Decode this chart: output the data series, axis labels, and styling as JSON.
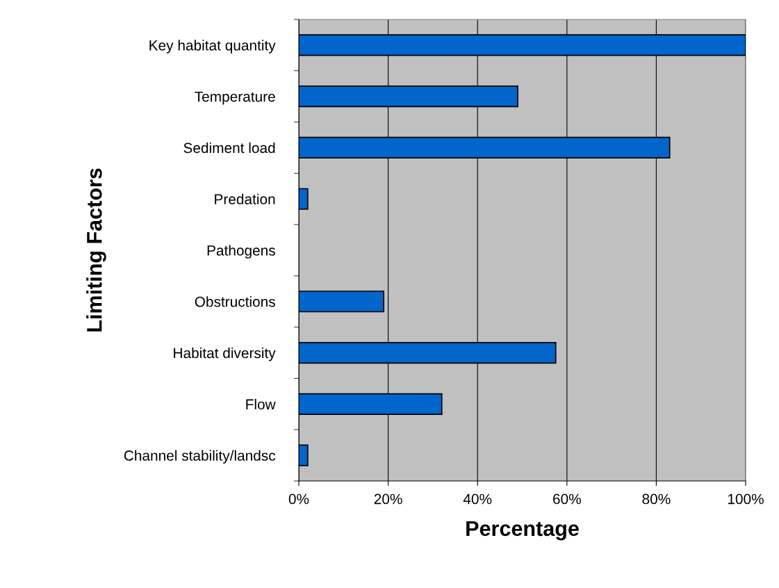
{
  "chart_data": {
    "type": "bar",
    "orientation": "horizontal",
    "xlabel": "Percentage",
    "ylabel": "Limiting Factors",
    "categories": [
      "Key habitat quantity",
      "Temperature",
      "Sediment load",
      "Predation",
      "Pathogens",
      "Obstructions",
      "Habitat diversity",
      "Flow",
      "Channel stability/landsc"
    ],
    "values": [
      100,
      49,
      83,
      2,
      0,
      19,
      57.5,
      32,
      2
    ],
    "color": "#0066cc",
    "xlim": [
      0,
      100
    ],
    "xticks": [
      {
        "value": 0,
        "label": "0%"
      },
      {
        "value": 20,
        "label": "20%"
      },
      {
        "value": 40,
        "label": "40%"
      },
      {
        "value": 60,
        "label": "60%"
      },
      {
        "value": 80,
        "label": "80%"
      },
      {
        "value": 100,
        "label": "100%"
      }
    ],
    "grid": "x",
    "legend": false
  }
}
